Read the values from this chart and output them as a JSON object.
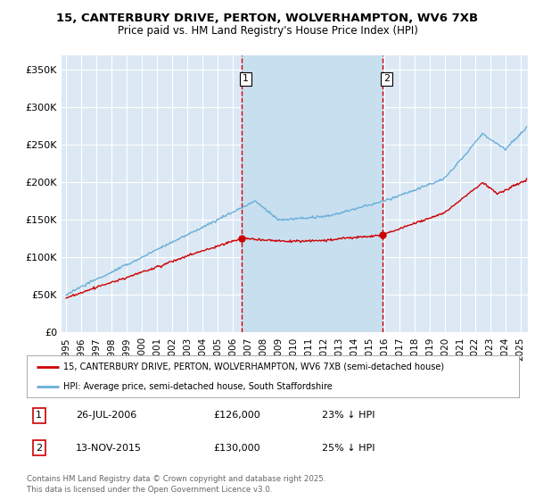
{
  "title_line1": "15, CANTERBURY DRIVE, PERTON, WOLVERHAMPTON, WV6 7XB",
  "title_line2": "Price paid vs. HM Land Registry's House Price Index (HPI)",
  "background_color": "#ffffff",
  "plot_bg_color": "#dce9f5",
  "shade_color": "#c8dff0",
  "grid_color": "#ffffff",
  "hpi_color": "#6aaed6",
  "price_color": "#cc0000",
  "vline_color": "#cc0000",
  "xmin_year": 1994.7,
  "xmax_year": 2025.5,
  "ymin": 0,
  "ymax": 370000,
  "yticks": [
    0,
    50000,
    100000,
    150000,
    200000,
    250000,
    300000,
    350000
  ],
  "ytick_labels": [
    "£0",
    "£50K",
    "£100K",
    "£150K",
    "£200K",
    "£250K",
    "£300K",
    "£350K"
  ],
  "xtick_years": [
    1995,
    1996,
    1997,
    1998,
    1999,
    2000,
    2001,
    2002,
    2003,
    2004,
    2005,
    2006,
    2007,
    2008,
    2009,
    2010,
    2011,
    2012,
    2013,
    2014,
    2015,
    2016,
    2017,
    2018,
    2019,
    2020,
    2021,
    2022,
    2023,
    2024,
    2025
  ],
  "sale1_year": 2006.57,
  "sale1_price": 126000,
  "sale2_year": 2015.87,
  "sale2_price": 130000,
  "legend_line1": "15, CANTERBURY DRIVE, PERTON, WOLVERHAMPTON, WV6 7XB (semi-detached house)",
  "legend_line2": "HPI: Average price, semi-detached house, South Staffordshire",
  "annotation1_box": "1",
  "annotation1_date": "26-JUL-2006",
  "annotation1_price": "£126,000",
  "annotation1_hpi": "23% ↓ HPI",
  "annotation2_box": "2",
  "annotation2_date": "13-NOV-2015",
  "annotation2_price": "£130,000",
  "annotation2_hpi": "25% ↓ HPI",
  "footer": "Contains HM Land Registry data © Crown copyright and database right 2025.\nThis data is licensed under the Open Government Licence v3.0."
}
